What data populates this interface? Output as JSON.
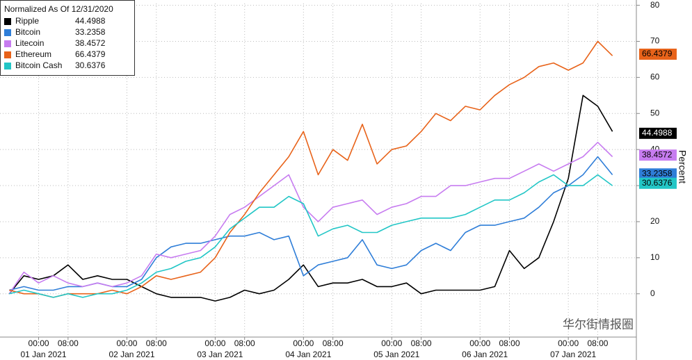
{
  "chart_data": {
    "type": "line",
    "legend_title": "Normalized As Of 12/31/2020",
    "y_axis_label": "Percent",
    "watermark": "华尔街情报圈",
    "x": [
      "2020-12-31 16:00",
      "2020-12-31 20:00",
      "2021-01-01 00:00",
      "2021-01-01 04:00",
      "2021-01-01 08:00",
      "2021-01-01 12:00",
      "2021-01-01 16:00",
      "2021-01-01 20:00",
      "2021-01-02 00:00",
      "2021-01-02 04:00",
      "2021-01-02 08:00",
      "2021-01-02 12:00",
      "2021-01-02 16:00",
      "2021-01-02 20:00",
      "2021-01-03 00:00",
      "2021-01-03 04:00",
      "2021-01-03 08:00",
      "2021-01-03 12:00",
      "2021-01-03 16:00",
      "2021-01-03 20:00",
      "2021-01-04 00:00",
      "2021-01-04 04:00",
      "2021-01-04 08:00",
      "2021-01-04 12:00",
      "2021-01-04 16:00",
      "2021-01-04 20:00",
      "2021-01-05 00:00",
      "2021-01-05 04:00",
      "2021-01-05 08:00",
      "2021-01-05 12:00",
      "2021-01-05 16:00",
      "2021-01-05 20:00",
      "2021-01-06 00:00",
      "2021-01-06 04:00",
      "2021-01-06 08:00",
      "2021-01-06 12:00",
      "2021-01-06 16:00",
      "2021-01-06 20:00",
      "2021-01-07 00:00",
      "2021-01-07 04:00",
      "2021-01-07 08:00",
      "2021-01-07 12:00"
    ],
    "xlim": [
      "2020-12-31 13:30",
      "2021-01-07 18:30"
    ],
    "xticks": [
      {
        "value": "2021-01-01 00:00",
        "label": "00:00"
      },
      {
        "value": "2021-01-01 08:00",
        "label": "08:00"
      },
      {
        "value": "2021-01-02 00:00",
        "label": "00:00"
      },
      {
        "value": "2021-01-02 08:00",
        "label": "08:00"
      },
      {
        "value": "2021-01-03 00:00",
        "label": "00:00"
      },
      {
        "value": "2021-01-03 08:00",
        "label": "08:00"
      },
      {
        "value": "2021-01-04 00:00",
        "label": "00:00"
      },
      {
        "value": "2021-01-04 08:00",
        "label": "08:00"
      },
      {
        "value": "2021-01-05 00:00",
        "label": "00:00"
      },
      {
        "value": "2021-01-05 08:00",
        "label": "08:00"
      },
      {
        "value": "2021-01-06 00:00",
        "label": "00:00"
      },
      {
        "value": "2021-01-06 08:00",
        "label": "08:00"
      },
      {
        "value": "2021-01-07 00:00",
        "label": "00:00"
      },
      {
        "value": "2021-01-07 08:00",
        "label": "08:00"
      }
    ],
    "x_date_labels": [
      {
        "value": "2021-01-01 00:00",
        "label": "01 Jan 2021"
      },
      {
        "value": "2021-01-02 00:00",
        "label": "02 Jan 2021"
      },
      {
        "value": "2021-01-03 00:00",
        "label": "03 Jan 2021"
      },
      {
        "value": "2021-01-04 00:00",
        "label": "04 Jan 2021"
      },
      {
        "value": "2021-01-05 00:00",
        "label": "05 Jan 2021"
      },
      {
        "value": "2021-01-06 00:00",
        "label": "06 Jan 2021"
      },
      {
        "value": "2021-01-07 00:00",
        "label": "07 Jan 2021"
      }
    ],
    "ylim": [
      -12,
      80.5
    ],
    "yticks": [
      0,
      10,
      20,
      30,
      40,
      50,
      60,
      70,
      80
    ],
    "grid": true,
    "series": [
      {
        "name": "Ripple",
        "color": "#000000",
        "last_value": 44.4988,
        "values": [
          0,
          5,
          4,
          5,
          8,
          4,
          5,
          4,
          4,
          2,
          0,
          -1,
          -1,
          -1,
          -2,
          -1,
          1,
          0,
          1,
          4,
          8,
          2,
          3,
          3,
          4,
          2,
          2,
          3,
          0,
          1,
          1,
          1,
          1,
          2,
          12,
          7,
          10,
          20,
          32,
          55,
          52,
          45
        ]
      },
      {
        "name": "Bitcoin",
        "color": "#2f7ed8",
        "last_value": 33.2358,
        "values": [
          1,
          2,
          1,
          1,
          2,
          2,
          3,
          2,
          2,
          4,
          10,
          13,
          14,
          14,
          15,
          16,
          16,
          17,
          15,
          16,
          5,
          8,
          9,
          10,
          15,
          8,
          7,
          8,
          12,
          14,
          12,
          17,
          19,
          19,
          20,
          21,
          24,
          28,
          30,
          33,
          38,
          33
        ]
      },
      {
        "name": "Litecoin",
        "color": "#c77cf0",
        "last_value": 38.4572,
        "values": [
          0,
          6,
          3,
          5,
          3,
          2,
          3,
          2,
          3,
          5,
          11,
          10,
          11,
          12,
          16,
          22,
          24,
          27,
          30,
          33,
          24,
          20,
          24,
          25,
          26,
          22,
          24,
          25,
          27,
          27,
          30,
          30,
          31,
          32,
          32,
          34,
          36,
          34,
          36,
          38,
          42,
          38
        ]
      },
      {
        "name": "Ethereum",
        "color": "#e8631a",
        "last_value": 66.4379,
        "values": [
          1,
          0,
          0,
          -1,
          0,
          0,
          0,
          1,
          0,
          2,
          5,
          4,
          5,
          6,
          10,
          17,
          22,
          28,
          33,
          38,
          45,
          33,
          40,
          37,
          47,
          36,
          40,
          41,
          45,
          50,
          48,
          52,
          51,
          55,
          58,
          60,
          63,
          64,
          62,
          64,
          70,
          66
        ]
      },
      {
        "name": "Bitcoin Cash",
        "color": "#22c6c6",
        "last_value": 30.6376,
        "values": [
          0,
          1,
          0,
          -1,
          0,
          -1,
          0,
          0,
          1,
          3,
          6,
          7,
          9,
          10,
          13,
          18,
          21,
          24,
          24,
          27,
          25,
          16,
          18,
          19,
          17,
          17,
          19,
          20,
          21,
          21,
          21,
          22,
          24,
          26,
          26,
          28,
          31,
          33,
          30,
          30,
          33,
          30
        ]
      }
    ]
  }
}
